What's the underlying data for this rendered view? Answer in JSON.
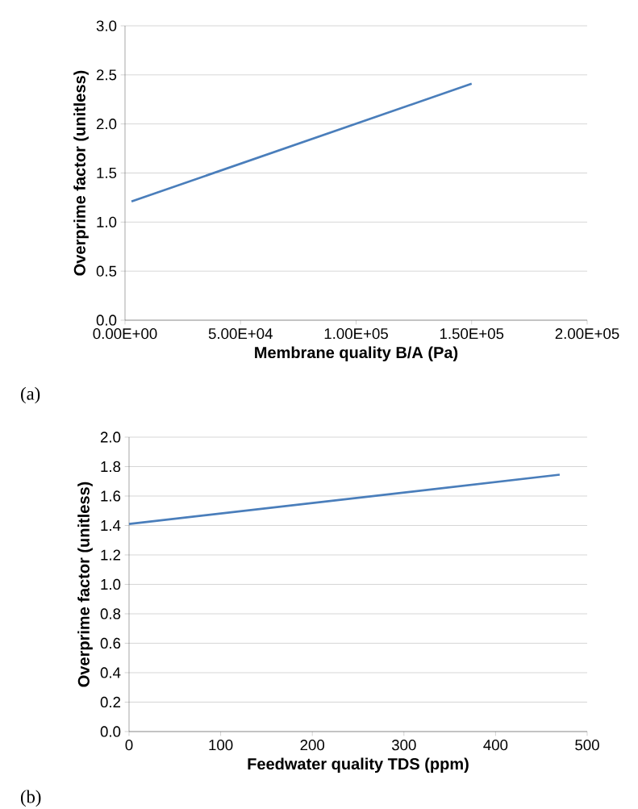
{
  "chart_data": [
    {
      "type": "line",
      "xlabel": "Membrane quality B/A (Pa)",
      "ylabel": "Overprime factor (unitless)",
      "x": [
        2800,
        150000
      ],
      "series": [
        {
          "color": "#4a7ebb",
          "values": [
            1.21,
            2.41
          ]
        }
      ],
      "xlim": [
        0,
        200000
      ],
      "xticks": [
        {
          "value": 0,
          "label": "0.00E+00"
        },
        {
          "value": 50000,
          "label": "5.00E+04"
        },
        {
          "value": 100000,
          "label": "1.00E+05"
        },
        {
          "value": 150000,
          "label": "1.50E+05"
        },
        {
          "value": 200000,
          "label": "2.00E+05"
        }
      ],
      "ylim": [
        0,
        3
      ],
      "yticks": [
        {
          "value": 0,
          "label": "0.0"
        },
        {
          "value": 0.5,
          "label": "0.5"
        },
        {
          "value": 1,
          "label": "1.0"
        },
        {
          "value": 1.5,
          "label": "1.5"
        },
        {
          "value": 2,
          "label": "2.0"
        },
        {
          "value": 2.5,
          "label": "2.5"
        },
        {
          "value": 3,
          "label": "3.0"
        }
      ],
      "grid": "y",
      "marker": "none",
      "line_style": "solid",
      "annotations": [
        "(a)"
      ]
    },
    {
      "type": "line",
      "xlabel": "Feedwater quality TDS (ppm)",
      "ylabel": "Overprime factor (unitless)",
      "x": [
        0,
        470
      ],
      "series": [
        {
          "color": "#4a7ebb",
          "values": [
            1.41,
            1.745
          ]
        }
      ],
      "xlim": [
        0,
        500
      ],
      "xticks": [
        0,
        100,
        200,
        300,
        400,
        500
      ],
      "ylim": [
        0,
        2
      ],
      "yticks": [
        {
          "value": 0,
          "label": "0.0"
        },
        {
          "value": 0.2,
          "label": "0.2"
        },
        {
          "value": 0.4,
          "label": "0.4"
        },
        {
          "value": 0.6,
          "label": "0.6"
        },
        {
          "value": 0.8,
          "label": "0.8"
        },
        {
          "value": 1,
          "label": "1.0"
        },
        {
          "value": 1.2,
          "label": "1.2"
        },
        {
          "value": 1.4,
          "label": "1.4"
        },
        {
          "value": 1.6,
          "label": "1.6"
        },
        {
          "value": 1.8,
          "label": "1.8"
        },
        {
          "value": 2,
          "label": "2.0"
        }
      ],
      "grid": "y",
      "marker": "none",
      "line_style": "solid",
      "annotations": [
        "(b)"
      ]
    }
  ]
}
